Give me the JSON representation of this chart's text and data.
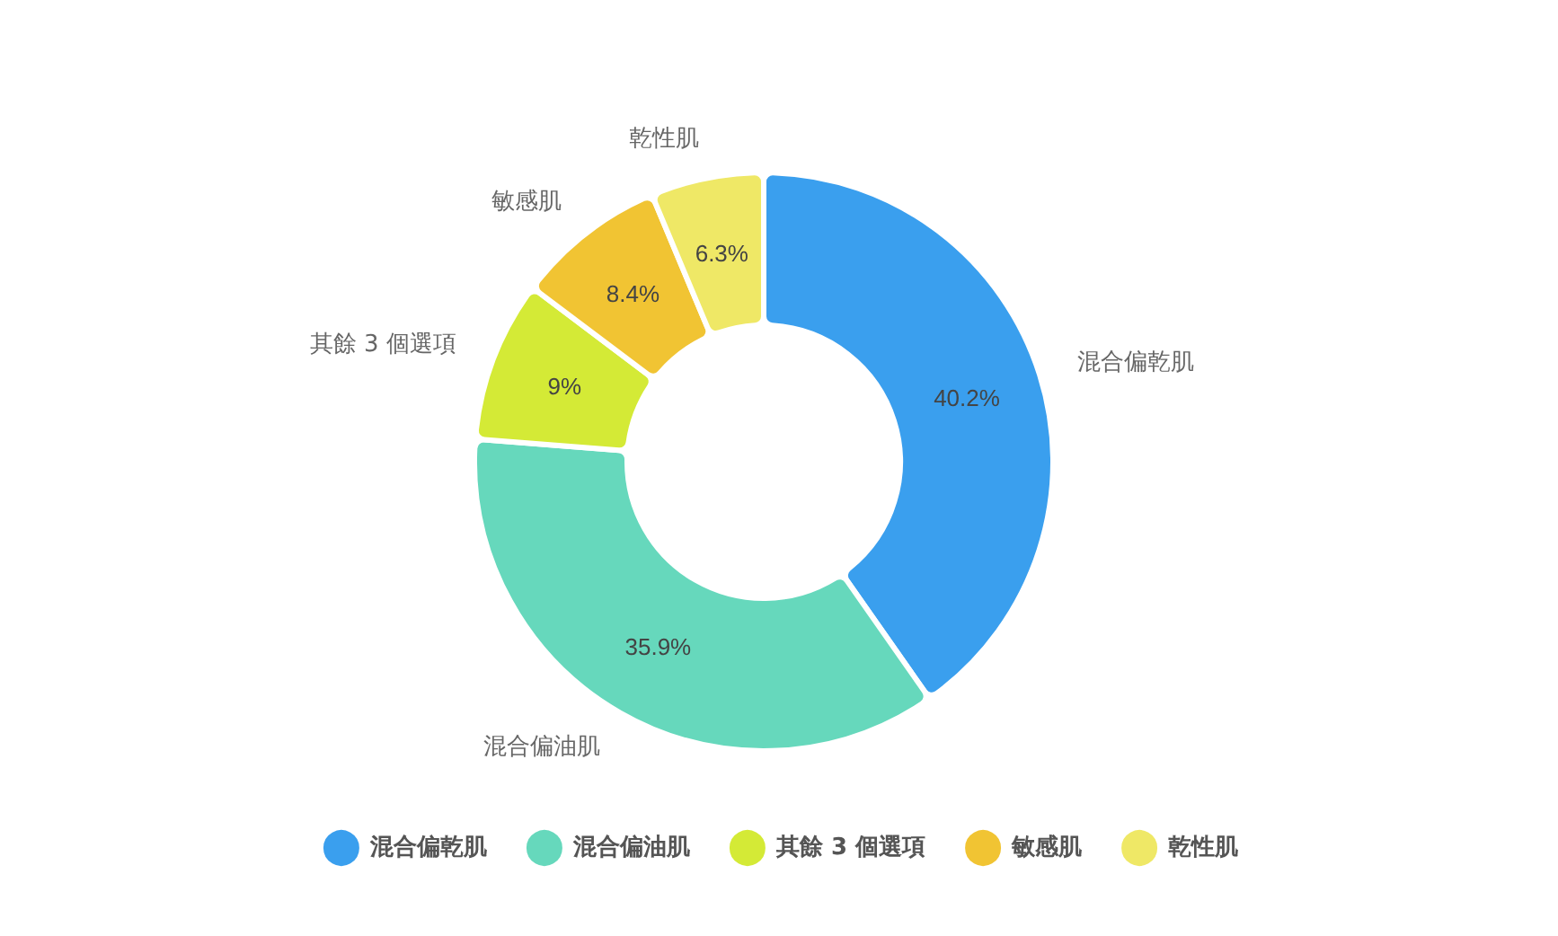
{
  "chart_data": {
    "type": "donut",
    "categories": [
      "混合偏乾肌",
      "混合偏油肌",
      "其餘 3 個選項",
      "敏感肌",
      "乾性肌"
    ],
    "values": [
      40.2,
      35.9,
      9,
      8.4,
      6.3
    ],
    "colors": [
      "#3a9fee",
      "#66d8bc",
      "#d4ea36",
      "#f1c433",
      "#efe866"
    ],
    "value_labels": [
      "40.2%",
      "35.9%",
      "9%",
      "8.4%",
      "6.3%"
    ],
    "legend": "bottom"
  }
}
